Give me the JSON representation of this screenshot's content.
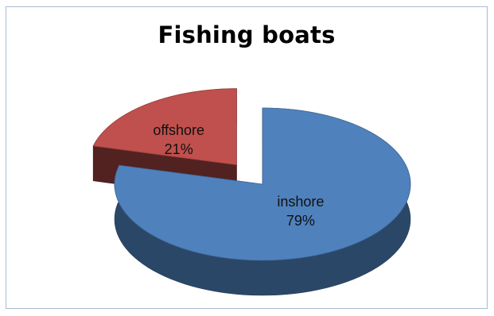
{
  "chart_data": {
    "type": "pie",
    "style": "3d-exploded",
    "title": "Fishing boats",
    "slices": [
      {
        "label": "inshore",
        "value": 79,
        "display": "79%",
        "color": "#4f81bd"
      },
      {
        "label": "offshore",
        "value": 21,
        "display": "21%",
        "color": "#c0504d"
      }
    ],
    "legend": "none"
  }
}
